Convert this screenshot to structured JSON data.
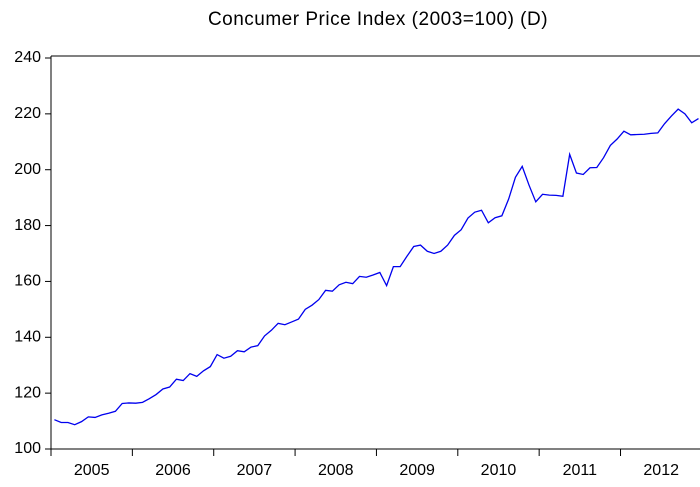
{
  "chart_data": {
    "type": "line",
    "title": "Concumer Price Index (2003=100) (D)",
    "categories": [
      null,
      null,
      null,
      null,
      null,
      null,
      "2005",
      null,
      null,
      null,
      null,
      null,
      null,
      null,
      null,
      null,
      null,
      null,
      "2006",
      null,
      null,
      null,
      null,
      null,
      null,
      null,
      null,
      null,
      null,
      null,
      "2007",
      null,
      null,
      null,
      null,
      null,
      null,
      null,
      null,
      null,
      null,
      null,
      "2008",
      null,
      null,
      null,
      null,
      null,
      null,
      null,
      null,
      null,
      null,
      null,
      "2009",
      null,
      null,
      null,
      null,
      null,
      null,
      null,
      null,
      null,
      null,
      null,
      "2010",
      null,
      null,
      null,
      null,
      null,
      null,
      null,
      null,
      null,
      null,
      null,
      "2011",
      null,
      null,
      null,
      null,
      null,
      null,
      null,
      null,
      null,
      null,
      null,
      "2012",
      null,
      null,
      null,
      null,
      null
    ],
    "series": [
      {
        "color": "#0000ee",
        "values": [
          110.5,
          109.5,
          109.5,
          108.7,
          109.8,
          111.5,
          111.3,
          112.2,
          112.8,
          113.5,
          116.3,
          116.5,
          116.4,
          116.7,
          118,
          119.5,
          121.5,
          122.2,
          125,
          124.5,
          127,
          126,
          128,
          129.5,
          133.8,
          132.5,
          133.2,
          135.2,
          134.8,
          136.5,
          137,
          140.5,
          142.5,
          145,
          144.5,
          145.5,
          146.5,
          150,
          151.5,
          153.5,
          156.8,
          156.5,
          158.8,
          159.7,
          159.2,
          161.8,
          161.5,
          162.3,
          163.2,
          158.5,
          165.3,
          165.3,
          169,
          172.5,
          173,
          170.8,
          170,
          170.8,
          173,
          176.5,
          178.5,
          182.7,
          184.8,
          185.5,
          181,
          182.8,
          183.5,
          189.5,
          197.3,
          201.2,
          194.5,
          188.5,
          191.2,
          190.9,
          190.8,
          190.5,
          205.5,
          198.8,
          198.3,
          200.7,
          200.8,
          204.3,
          208.7,
          211,
          213.8,
          212.5,
          212.6,
          212.7,
          213,
          213.2,
          216.5,
          219.2,
          221.7,
          220,
          216.8,
          218.3
        ]
      }
    ],
    "ylim": [
      100,
      240
    ],
    "yticks": [
      100,
      120,
      140,
      160,
      180,
      200,
      220,
      240
    ]
  }
}
